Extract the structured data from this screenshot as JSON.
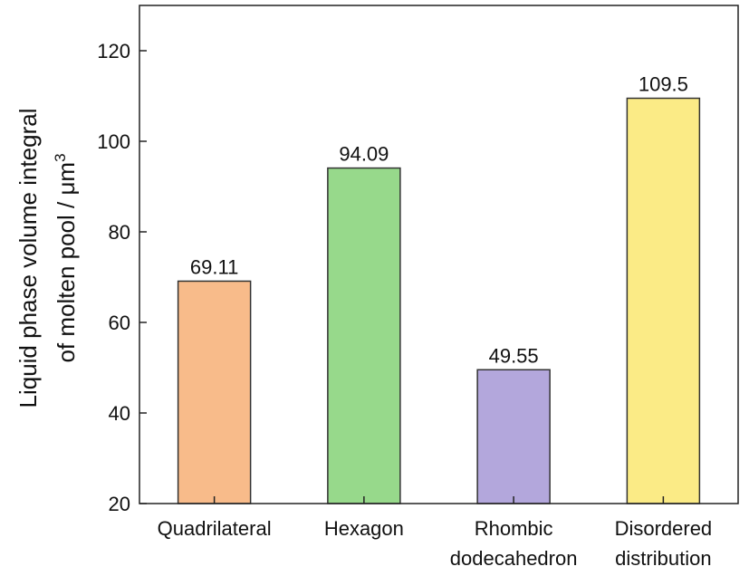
{
  "chart_data": {
    "type": "bar",
    "categories": [
      [
        "Quadrilateral"
      ],
      [
        "Hexagon"
      ],
      [
        "Rhombic",
        "dodecahedron"
      ],
      [
        "Disordered",
        "distribution"
      ]
    ],
    "values": [
      69.11,
      94.09,
      49.55,
      109.5
    ],
    "value_labels": [
      "69.11",
      "94.09",
      "49.55",
      "109.5"
    ],
    "colors": [
      "#f8bb8a",
      "#97d98b",
      "#b3a7dc",
      "#fbeb86"
    ],
    "title": "",
    "xlabel": "",
    "ylabel_lines": [
      "Liquid phase volume integral",
      "of molten pool / μm"
    ],
    "ylabel_superscript": "3",
    "ylim": [
      20,
      130
    ],
    "yticks": [
      20,
      40,
      60,
      80,
      100,
      120
    ],
    "grid": false,
    "legend": "none"
  }
}
